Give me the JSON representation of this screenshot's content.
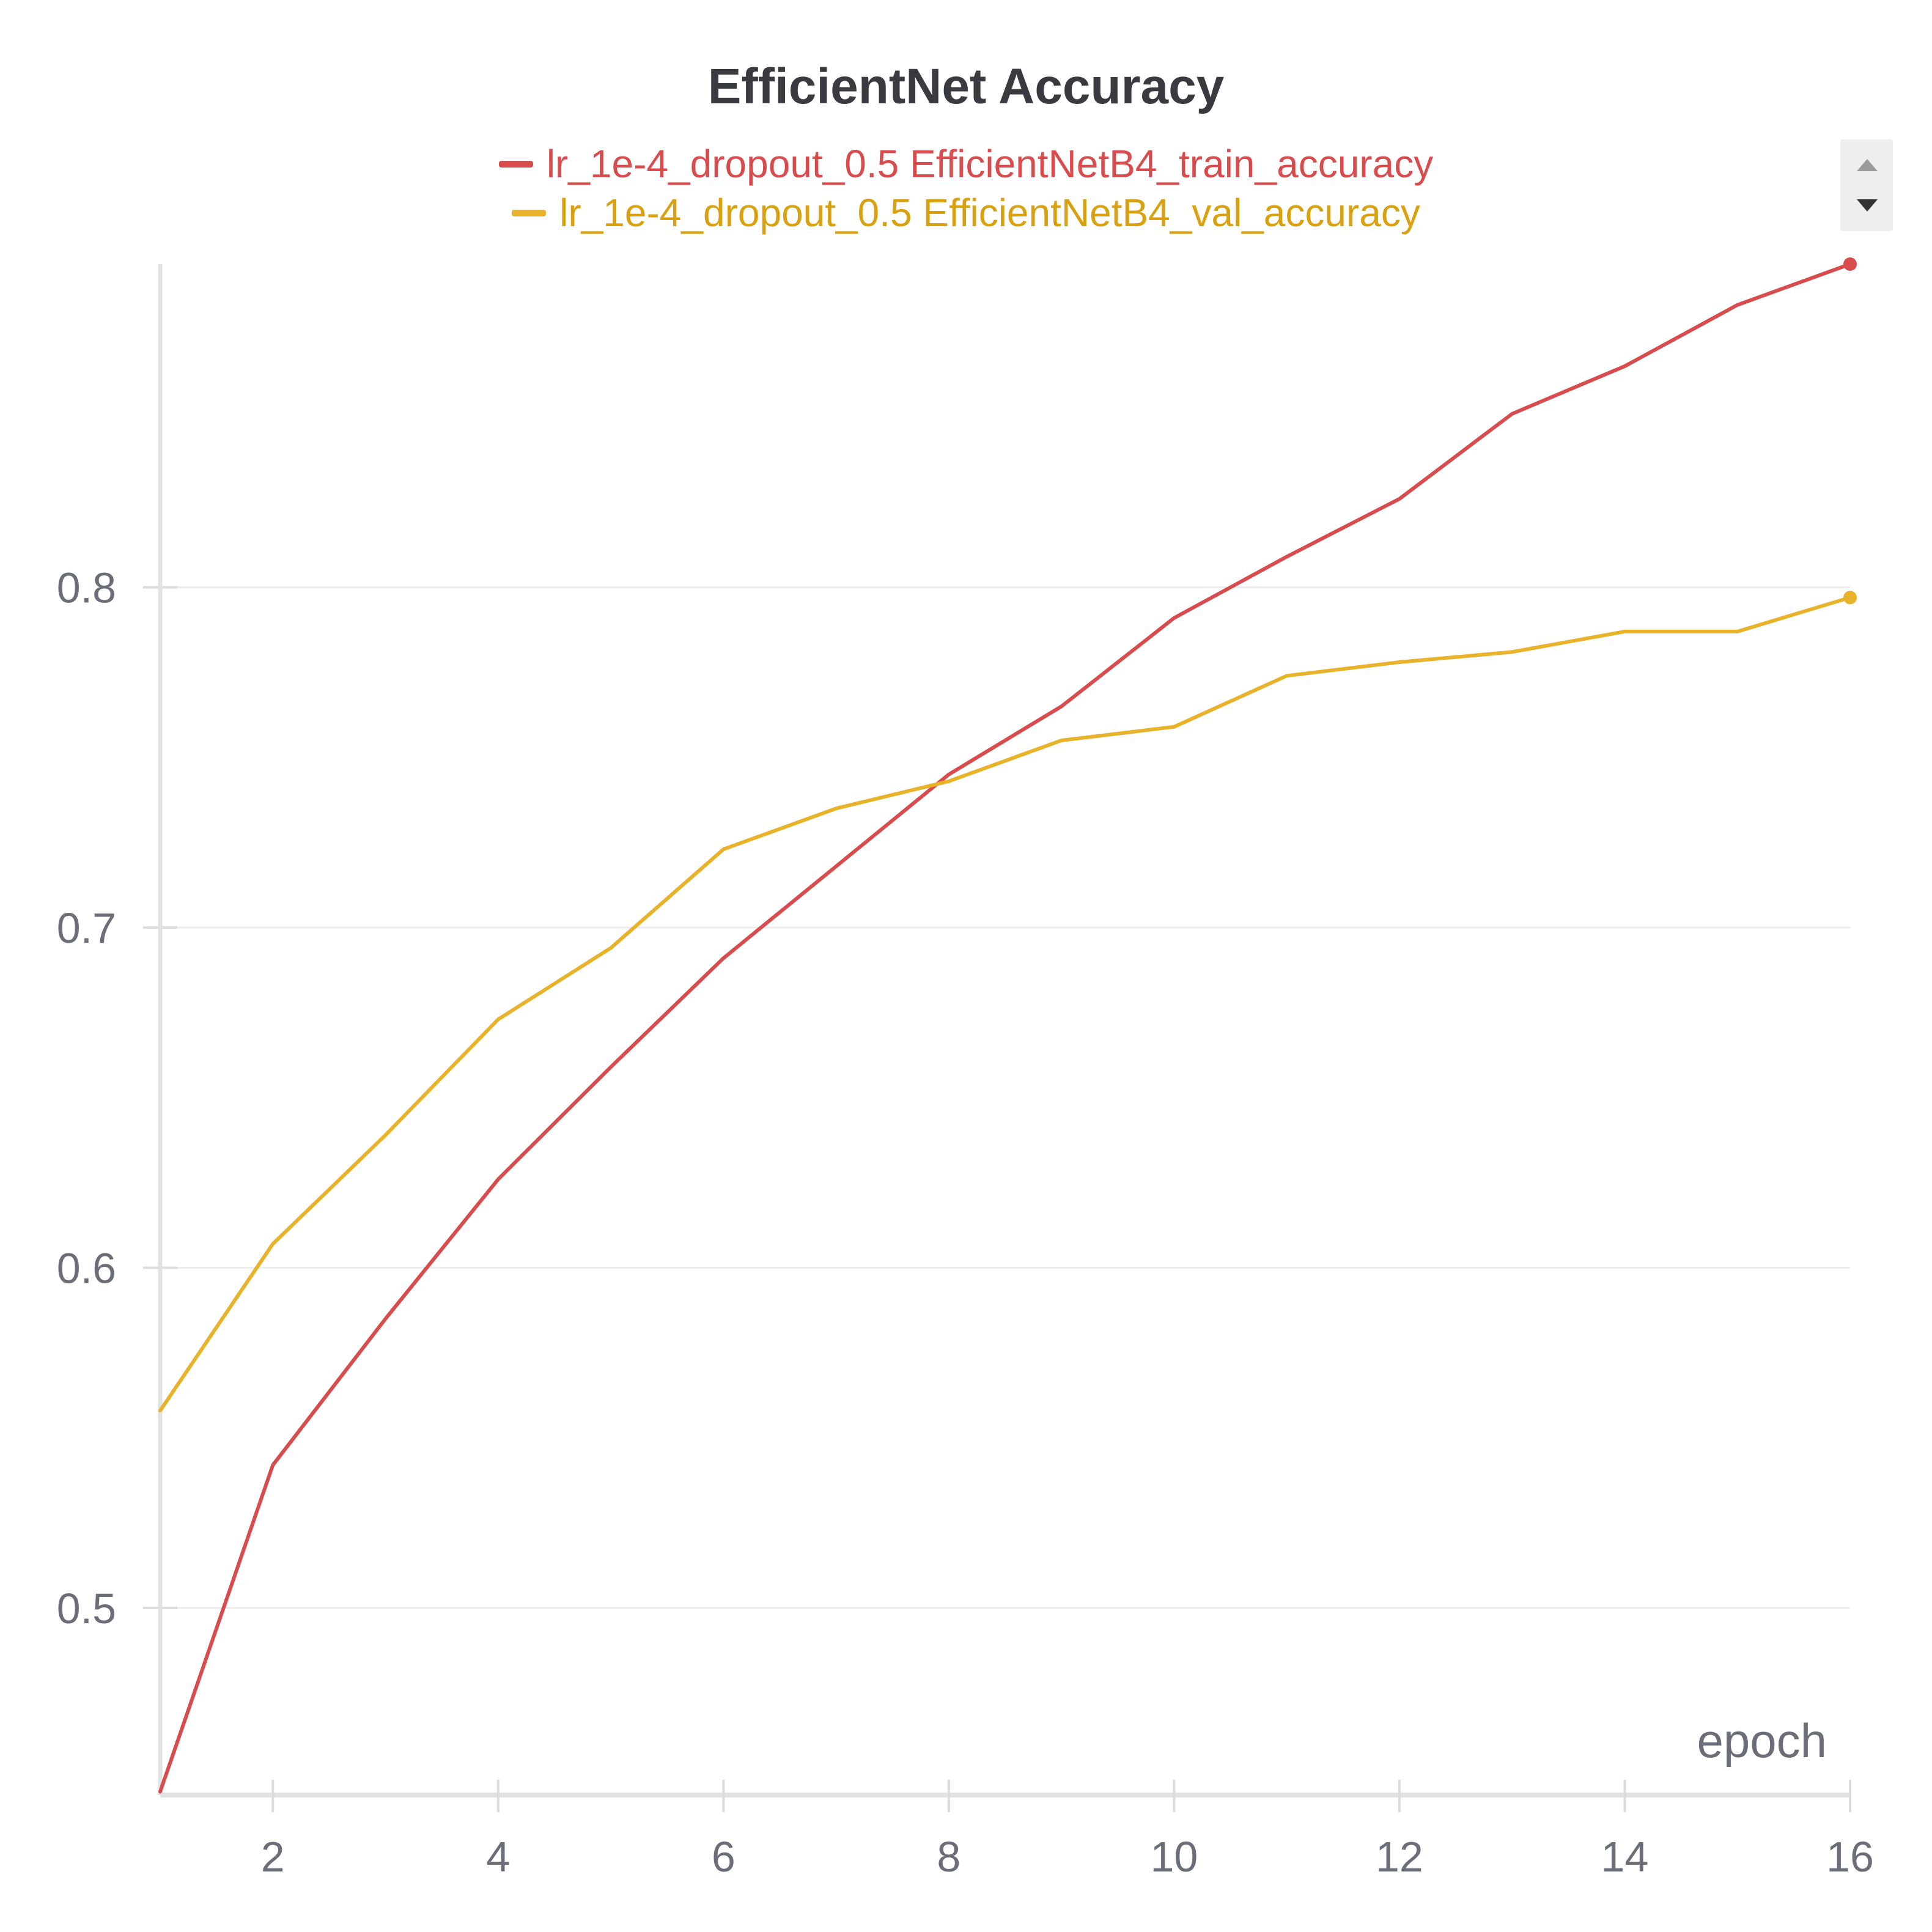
{
  "chart_data": {
    "type": "line",
    "title": "EfficientNet Accuracy",
    "xlabel": "epoch",
    "ylabel": "",
    "x": [
      1,
      2,
      3,
      4,
      5,
      6,
      7,
      8,
      9,
      10,
      11,
      12,
      13,
      14,
      15,
      16
    ],
    "xlim": [
      1,
      16
    ],
    "ylim": [
      0.445,
      0.895
    ],
    "x_ticks": [
      2,
      4,
      6,
      8,
      10,
      12,
      14,
      16
    ],
    "y_ticks": [
      0.5,
      0.6,
      0.7,
      0.8
    ],
    "y_tick_labels": [
      "0.5",
      "0.6",
      "0.7",
      "0.8"
    ],
    "grid": "horizontal",
    "legend_position": "top-center",
    "series": [
      {
        "name": "lr_1e-4_dropout_0.5 EfficientNetB4_train_accuracy",
        "color": "#d94c4e",
        "values": [
          0.446,
          0.542,
          0.585,
          0.626,
          0.659,
          0.691,
          0.718,
          0.745,
          0.765,
          0.791,
          0.809,
          0.826,
          0.851,
          0.865,
          0.883,
          0.895
        ]
      },
      {
        "name": "lr_1e-4_dropout_0.5 EfficientNetB4_val_accuracy",
        "color": "#e8b32b",
        "values": [
          0.558,
          0.607,
          0.639,
          0.673,
          0.694,
          0.723,
          0.735,
          0.743,
          0.755,
          0.759,
          0.774,
          0.778,
          0.781,
          0.787,
          0.787,
          0.797
        ]
      }
    ]
  }
}
